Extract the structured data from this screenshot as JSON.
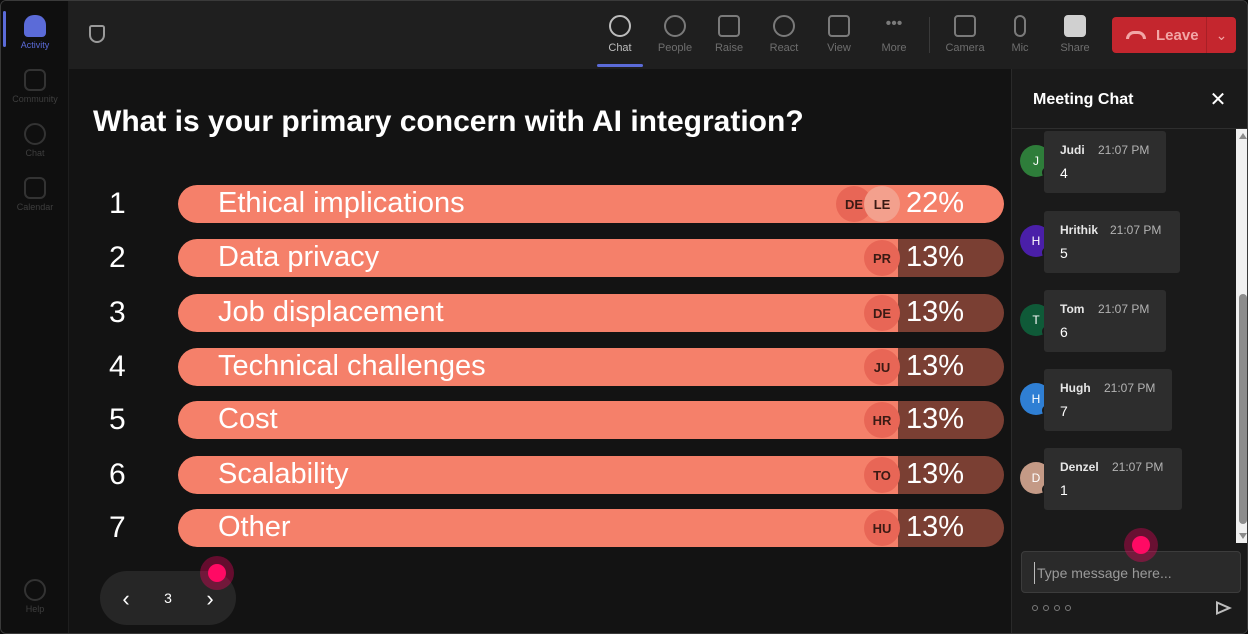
{
  "rail": {
    "items": [
      {
        "label": "Activity",
        "icon": "bell-icon"
      },
      {
        "label": "Community",
        "icon": "community-icon"
      },
      {
        "label": "Chat",
        "icon": "chat-icon"
      },
      {
        "label": "Calendar",
        "icon": "calendar-icon"
      }
    ],
    "help": {
      "label": "Help",
      "icon": "help-icon"
    }
  },
  "toolbar": {
    "tools": [
      {
        "label": "Chat",
        "icon": "chat-icon"
      },
      {
        "label": "People",
        "icon": "people-icon"
      },
      {
        "label": "Raise",
        "icon": "hand-icon"
      },
      {
        "label": "React",
        "icon": "smile-icon"
      },
      {
        "label": "View",
        "icon": "grid-icon"
      },
      {
        "label": "More",
        "icon": "more-icon"
      },
      {
        "label": "Camera",
        "icon": "camera-off-icon"
      },
      {
        "label": "Mic",
        "icon": "mic-icon"
      },
      {
        "label": "Share",
        "icon": "share-icon"
      }
    ],
    "leave_label": "Leave",
    "leave_color": "#c4262e"
  },
  "poll": {
    "question": "What is your primary concern with AI integration?",
    "options": [
      {
        "num": "1",
        "label": "Ethical implications",
        "percent": "22%",
        "fill": 0.22,
        "avatars": [
          "DE",
          "LE"
        ]
      },
      {
        "num": "2",
        "label": "Data privacy",
        "percent": "13%",
        "fill": 0.13,
        "avatars": [
          "PR"
        ]
      },
      {
        "num": "3",
        "label": "Job displacement",
        "percent": "13%",
        "fill": 0.13,
        "avatars": [
          "DE"
        ]
      },
      {
        "num": "4",
        "label": "Technical challenges",
        "percent": "13%",
        "fill": 0.13,
        "avatars": [
          "JU"
        ]
      },
      {
        "num": "5",
        "label": "Cost",
        "percent": "13%",
        "fill": 0.13,
        "avatars": [
          "HR"
        ]
      },
      {
        "num": "6",
        "label": "Scalability",
        "percent": "13%",
        "fill": 0.13,
        "avatars": [
          "TO"
        ]
      },
      {
        "num": "7",
        "label": "Other",
        "percent": "13%",
        "fill": 0.13,
        "avatars": [
          "HU"
        ]
      }
    ],
    "bar_color": "#f5806a",
    "track_color": "#7a3f33"
  },
  "pager": {
    "page": "3",
    "prev": "‹",
    "next": "›"
  },
  "chat": {
    "title": "Meeting Chat",
    "close": "✕",
    "messages": [
      {
        "initial": "J",
        "name": "Judi",
        "time": "21:07 PM",
        "text": "4",
        "color": "#2e7d3a"
      },
      {
        "initial": "H",
        "name": "Hrithik",
        "time": "21:07 PM",
        "text": "5",
        "color": "#4a1fa8"
      },
      {
        "initial": "T",
        "name": "Tom",
        "time": "21:07 PM",
        "text": "6",
        "color": "#0f5a38"
      },
      {
        "initial": "H",
        "name": "Hugh",
        "time": "21:07 PM",
        "text": "7",
        "color": "#2f7fd4"
      },
      {
        "initial": "D",
        "name": "Denzel",
        "time": "21:07 PM",
        "text": "1",
        "color": "#c49a86"
      }
    ],
    "input_placeholder": "Type message here..."
  }
}
